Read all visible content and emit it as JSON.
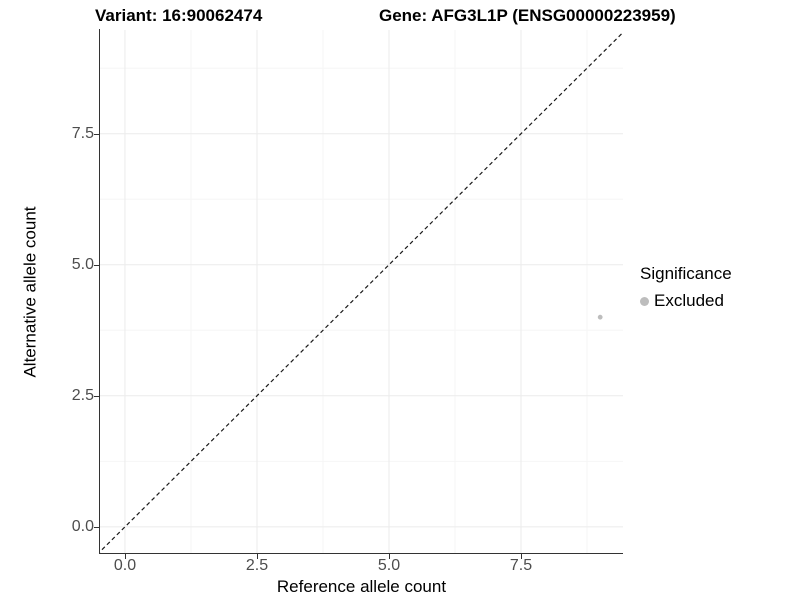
{
  "chart_data": {
    "type": "scatter",
    "titles": {
      "variant": "Variant: 16:90062474",
      "gene": "Gene: AFG3L1P (ENSG00000223959)"
    },
    "xlabel": "Reference allele count",
    "ylabel": "Alternative allele count",
    "x_ticks": {
      "values": [
        0,
        2.5,
        5,
        7.5
      ],
      "labels": [
        "0.0",
        "2.5",
        "5.0",
        "7.5"
      ]
    },
    "y_ticks": {
      "values": [
        0,
        2.5,
        5,
        7.5
      ],
      "labels": [
        "0.0",
        "2.5",
        "5.0",
        "7.5"
      ]
    },
    "x_minor": [
      1.25,
      3.75,
      6.25,
      8.75
    ],
    "y_minor": [
      1.25,
      3.75,
      6.25,
      8.75
    ],
    "xlim": [
      -0.473,
      9.432
    ],
    "ylim": [
      -0.499,
      9.479
    ],
    "points": [
      {
        "x": 9,
        "y": 4,
        "series": "Excluded"
      }
    ],
    "identity_line": {
      "slope": 1,
      "intercept": 0,
      "style": "dashed"
    },
    "legend": {
      "title": "Significance",
      "position": "right",
      "entries": [
        {
          "label": "Excluded",
          "color": "#bdbdbd"
        }
      ]
    },
    "grid": "major+minor",
    "colors": {
      "point": "#bdbdbd",
      "grid_major": "#ebebeb",
      "grid_minor": "#f6f6f6",
      "axis_line": "#333333",
      "tick_label": "#4d4d4d",
      "identity_line": "#1a1a1a",
      "background": "#ffffff"
    }
  }
}
